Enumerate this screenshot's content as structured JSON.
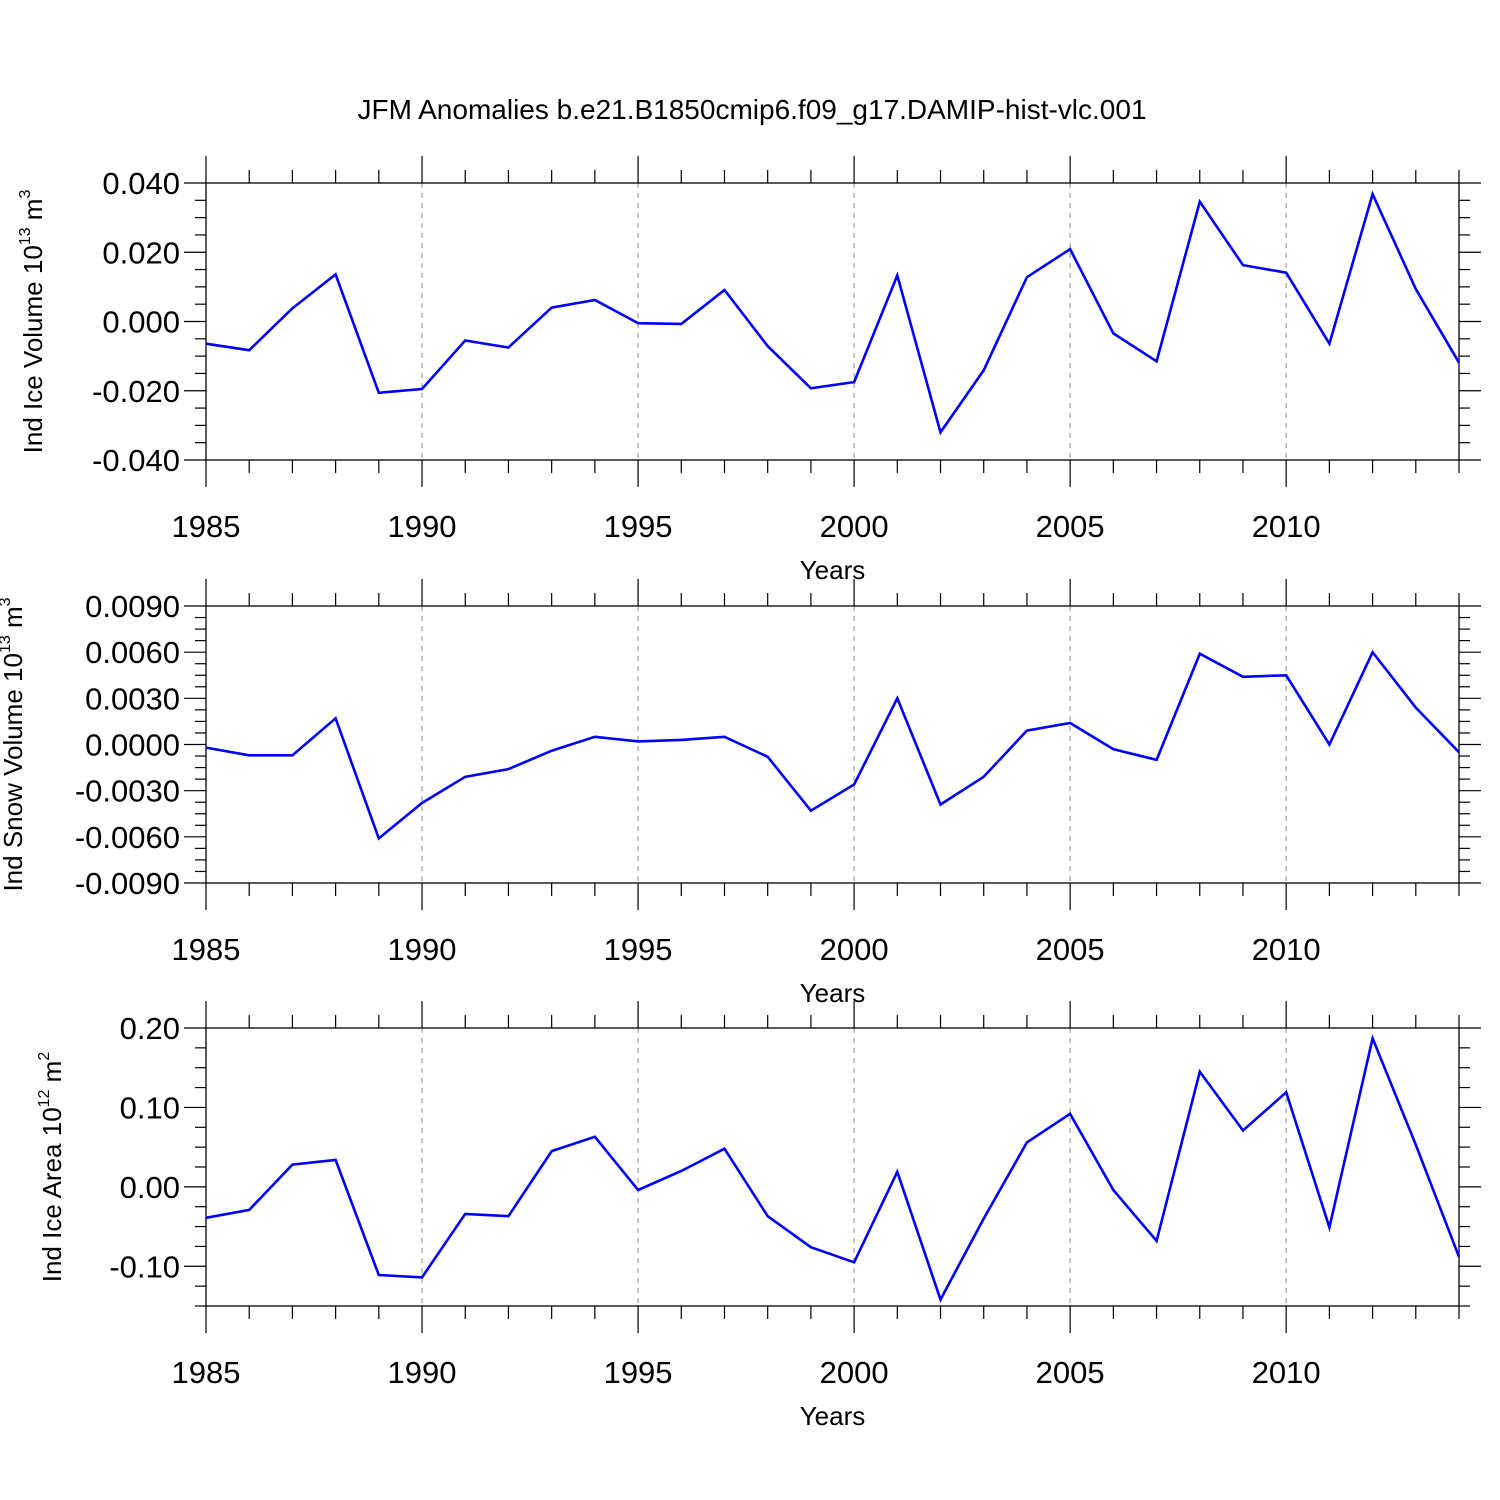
{
  "title": "JFM Anomalies b.e21.B1850cmip6.f09_g17.DAMIP-hist-vlc.001",
  "colors": {
    "series": "#0000ff",
    "axis": "#000000",
    "grid": "#a0a0a0"
  },
  "chart_data": [
    {
      "type": "line",
      "ylabel": {
        "base": "Ind Ice Volume 10",
        "exponent": "13",
        "unit": " m",
        "unit_exponent": "3"
      },
      "xlabel": "Years",
      "xlim": [
        1985,
        2014
      ],
      "ylim": [
        -0.04,
        0.04
      ],
      "yticks": [
        -0.04,
        -0.02,
        0.0,
        0.02,
        0.04
      ],
      "ytick_labels": [
        "-0.040",
        "-0.020",
        "0.000",
        "0.020",
        "0.040"
      ],
      "xticks": [
        1985,
        1990,
        1995,
        2000,
        2005,
        2010
      ],
      "xtick_labels": [
        "1985",
        "1990",
        "1995",
        "2000",
        "2005",
        "2010"
      ],
      "grid": "vertical dashed at major x ticks",
      "series": [
        {
          "x": [
            1985,
            1986,
            1987,
            1988,
            1989,
            1990,
            1991,
            1992,
            1993,
            1994,
            1995,
            1996,
            1997,
            1998,
            1999,
            2000,
            2001,
            2002,
            2003,
            2004,
            2005,
            2006,
            2007,
            2008,
            2009,
            2010,
            2011,
            2012,
            2013,
            2014
          ],
          "values": [
            -0.0064,
            -0.0083,
            0.0038,
            0.0136,
            -0.0206,
            -0.0195,
            -0.0055,
            -0.0075,
            0.004,
            0.0062,
            -0.0005,
            -0.0007,
            0.0091,
            -0.0071,
            -0.0193,
            -0.0175,
            0.0133,
            -0.032,
            -0.0141,
            0.0128,
            0.0209,
            -0.0034,
            -0.0115,
            0.0346,
            0.0163,
            0.0141,
            -0.0064,
            0.0368,
            0.0094,
            -0.0119
          ]
        }
      ]
    },
    {
      "type": "line",
      "ylabel": {
        "base": "Ind Snow Volume 10",
        "exponent": "13",
        "unit": " m",
        "unit_exponent": "3"
      },
      "xlabel": "Years",
      "xlim": [
        1985,
        2014
      ],
      "ylim": [
        -0.009,
        0.009
      ],
      "yticks": [
        -0.009,
        -0.006,
        -0.003,
        0.0,
        0.003,
        0.006,
        0.009
      ],
      "ytick_labels": [
        "-0.0090",
        "-0.0060",
        "-0.0030",
        "0.0000",
        "0.0030",
        "0.0060",
        "0.0090"
      ],
      "xticks": [
        1985,
        1990,
        1995,
        2000,
        2005,
        2010
      ],
      "xtick_labels": [
        "1985",
        "1990",
        "1995",
        "2000",
        "2005",
        "2010"
      ],
      "grid": "vertical dashed at major x ticks",
      "series": [
        {
          "x": [
            1985,
            1986,
            1987,
            1988,
            1989,
            1990,
            1991,
            1992,
            1993,
            1994,
            1995,
            1996,
            1997,
            1998,
            1999,
            2000,
            2001,
            2002,
            2003,
            2004,
            2005,
            2006,
            2007,
            2008,
            2009,
            2010,
            2011,
            2012,
            2013,
            2014
          ],
          "values": [
            -0.0002,
            -0.0007,
            -0.0007,
            0.0017,
            -0.0061,
            -0.0038,
            -0.0021,
            -0.0016,
            -0.0004,
            0.0005,
            0.0002,
            0.0003,
            0.0005,
            -0.0008,
            -0.0043,
            -0.0026,
            0.003,
            -0.0039,
            -0.0021,
            0.0009,
            0.0014,
            -0.0003,
            -0.001,
            0.0059,
            0.0044,
            0.0045,
            0.0,
            0.006,
            0.0024,
            -0.0005
          ]
        }
      ]
    },
    {
      "type": "line",
      "ylabel": {
        "base": "Ind Ice Area 10",
        "exponent": "12",
        "unit": " m",
        "unit_exponent": "2"
      },
      "xlabel": "Years",
      "xlim": [
        1985,
        2014
      ],
      "ylim": [
        -0.15,
        0.2
      ],
      "yticks": [
        -0.1,
        0.0,
        0.1,
        0.2
      ],
      "ytick_labels": [
        "-0.10",
        "0.00",
        "0.10",
        "0.20"
      ],
      "xticks": [
        1985,
        1990,
        1995,
        2000,
        2005,
        2010
      ],
      "xtick_labels": [
        "1985",
        "1990",
        "1995",
        "2000",
        "2005",
        "2010"
      ],
      "grid": "vertical dashed at major x ticks",
      "series": [
        {
          "x": [
            1985,
            1986,
            1987,
            1988,
            1989,
            1990,
            1991,
            1992,
            1993,
            1994,
            1995,
            1996,
            1997,
            1998,
            1999,
            2000,
            2001,
            2002,
            2003,
            2004,
            2005,
            2006,
            2007,
            2008,
            2009,
            2010,
            2011,
            2012,
            2013,
            2014
          ],
          "values": [
            -0.039,
            -0.029,
            0.028,
            0.034,
            -0.111,
            -0.114,
            -0.034,
            -0.037,
            0.045,
            0.063,
            -0.004,
            0.02,
            0.048,
            -0.037,
            -0.076,
            -0.095,
            0.019,
            -0.142,
            -0.04,
            0.056,
            0.092,
            -0.004,
            -0.068,
            0.145,
            0.071,
            0.119,
            -0.051,
            0.187,
            0.053,
            -0.088
          ]
        }
      ]
    }
  ]
}
